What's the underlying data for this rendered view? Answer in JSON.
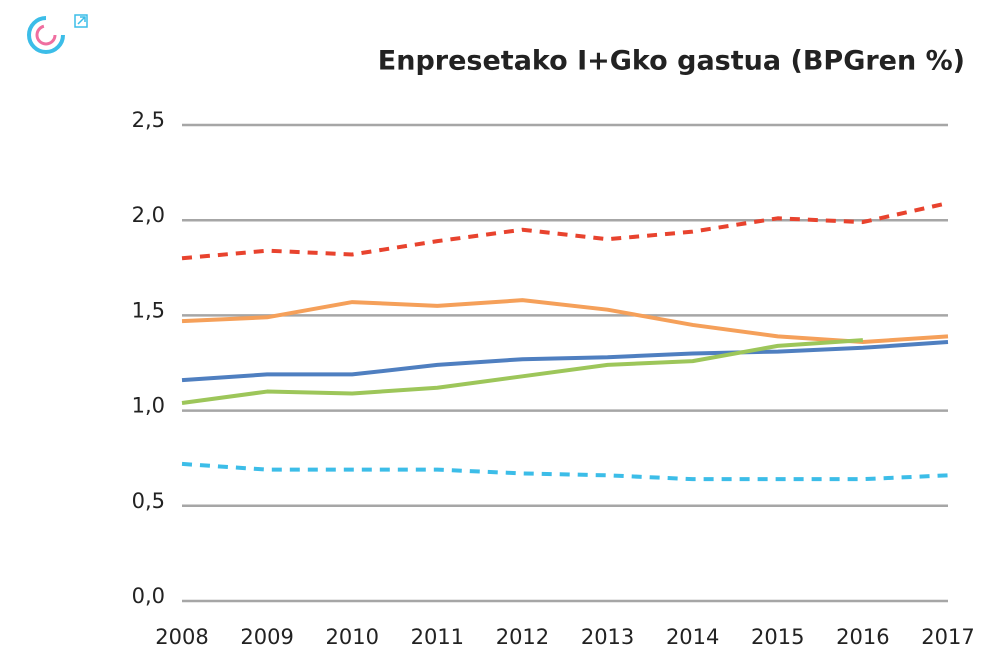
{
  "chart_data": {
    "type": "line",
    "title": "Enpresetako I+Gko gastua (BPGren %)",
    "categories": [
      "2008",
      "2009",
      "2010",
      "2011",
      "2012",
      "2013",
      "2014",
      "2015",
      "2016",
      "2017"
    ],
    "series": [
      {
        "color": "#e8432e",
        "dash": true,
        "values": [
          1.8,
          1.84,
          1.82,
          1.89,
          1.95,
          1.9,
          1.94,
          2.01,
          1.99,
          2.09
        ]
      },
      {
        "color": "#f5a05a",
        "dash": false,
        "values": [
          1.47,
          1.49,
          1.57,
          1.55,
          1.58,
          1.53,
          1.45,
          1.39,
          1.36,
          1.39
        ]
      },
      {
        "color": "#4f7fc0",
        "dash": false,
        "values": [
          1.16,
          1.19,
          1.19,
          1.24,
          1.27,
          1.28,
          1.3,
          1.31,
          1.33,
          1.36
        ]
      },
      {
        "color": "#9dc65a",
        "dash": false,
        "values": [
          1.04,
          1.1,
          1.09,
          1.12,
          1.18,
          1.24,
          1.26,
          1.34,
          1.37,
          null
        ]
      },
      {
        "color": "#3cbde8",
        "dash": true,
        "values": [
          0.72,
          0.69,
          0.69,
          0.69,
          0.67,
          0.66,
          0.64,
          0.64,
          0.64,
          0.66
        ]
      }
    ],
    "ylim": [
      0,
      2.5
    ],
    "yticks": [
      {
        "value": 0,
        "label": "0,0"
      },
      {
        "value": 0.5,
        "label": "0,5"
      },
      {
        "value": 1,
        "label": "1,0"
      },
      {
        "value": 1.5,
        "label": "1,5"
      },
      {
        "value": 2,
        "label": "2,0"
      },
      {
        "value": 2.5,
        "label": "2,5"
      }
    ],
    "grid": true
  }
}
